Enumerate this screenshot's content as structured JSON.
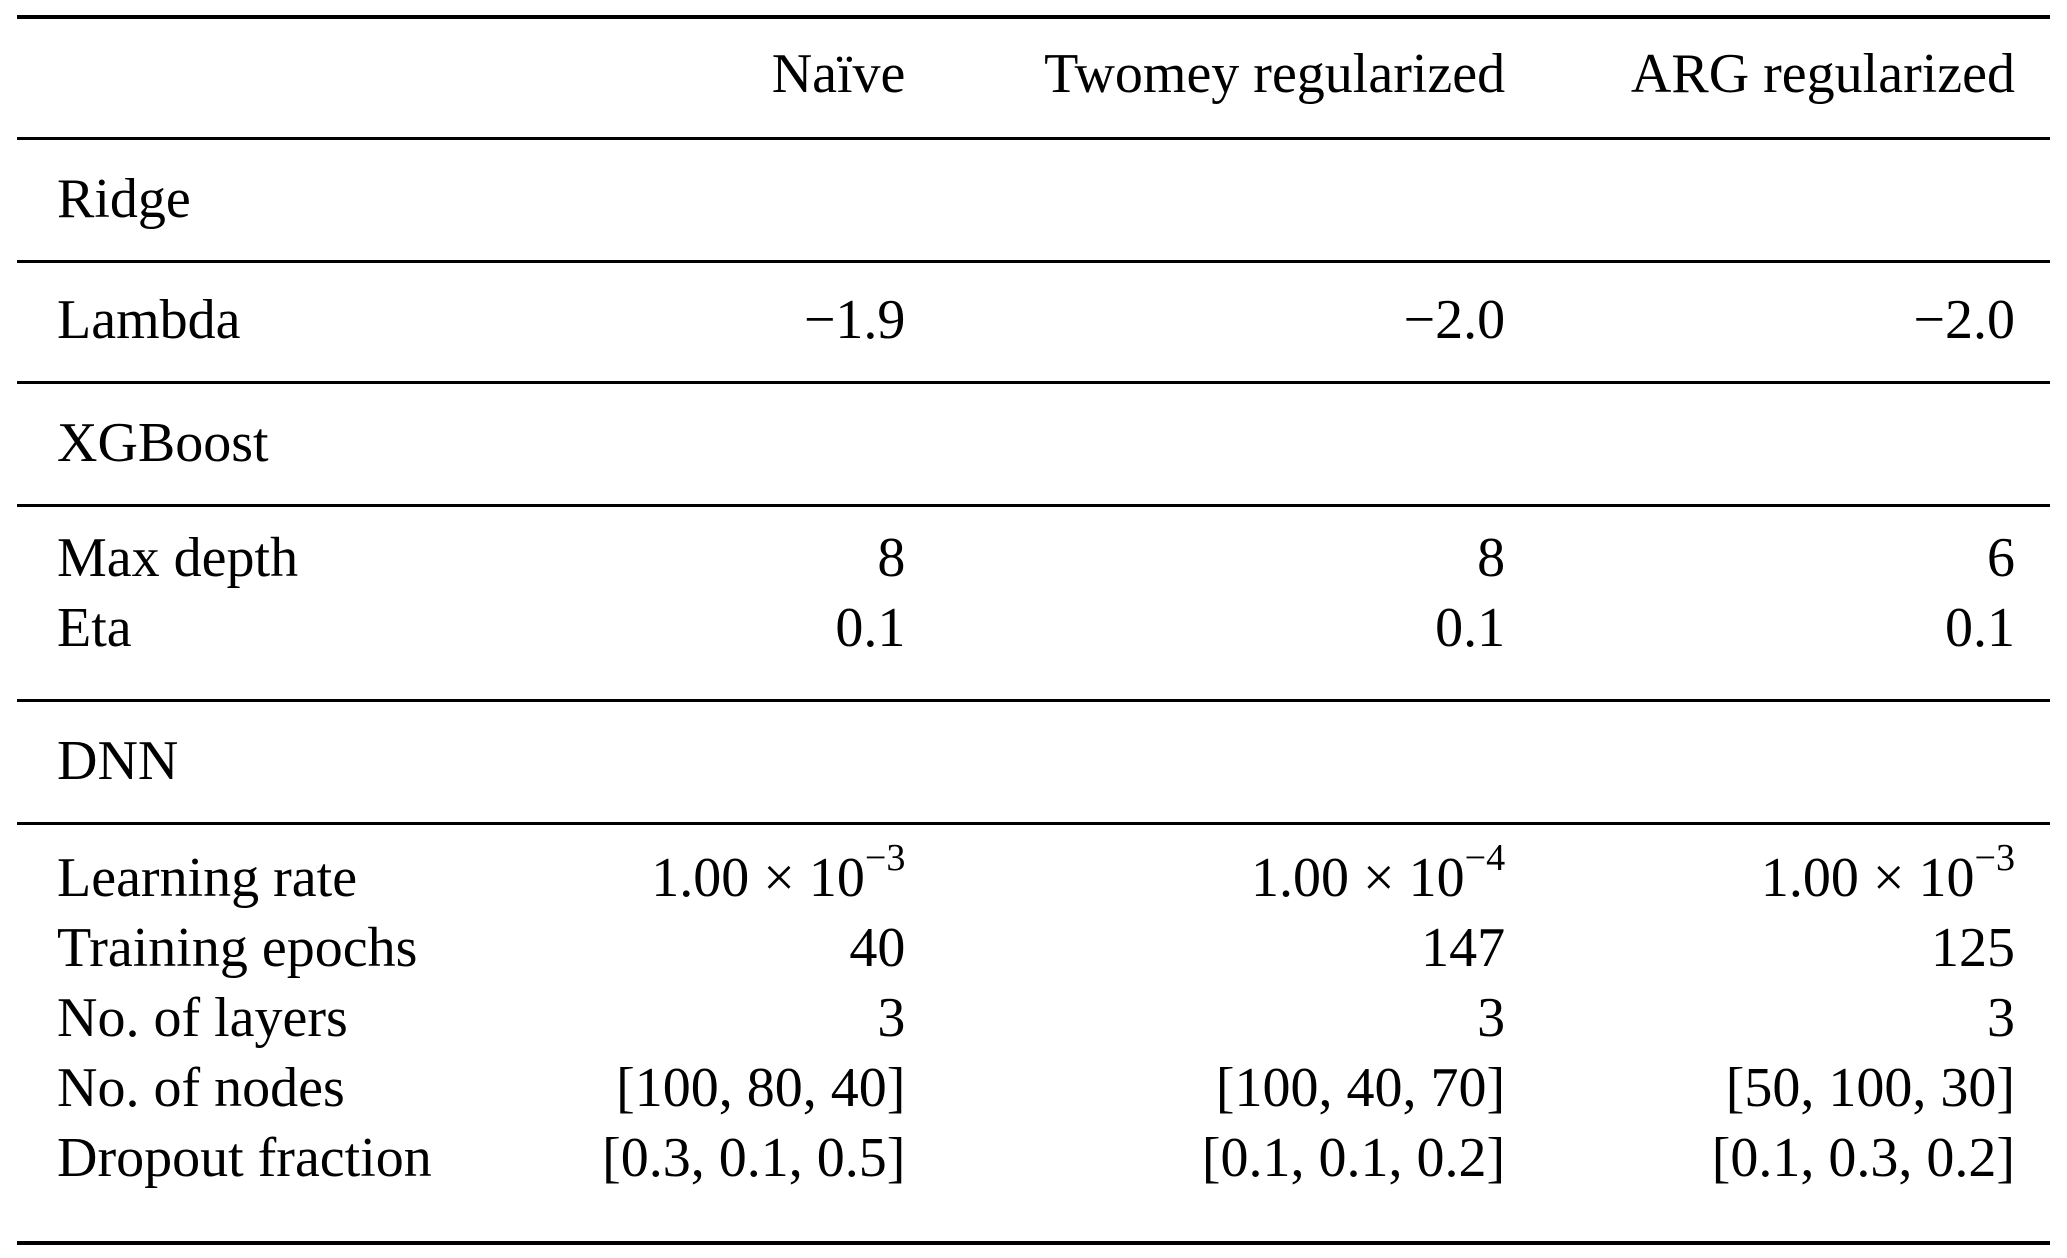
{
  "page": {
    "background_color": "#ffffff",
    "text_color": "#000000",
    "rule_color": "#000000"
  },
  "table": {
    "header": {
      "col2": "Naïve",
      "col3": "Twomey regularized",
      "col4": "ARG regularized"
    },
    "sections": [
      {
        "title": "Ridge",
        "rows": [
          {
            "label": "Lambda",
            "naive": "−1.9",
            "twomey": "−2.0",
            "arg": "−2.0"
          }
        ]
      },
      {
        "title": "XGBoost",
        "rows": [
          {
            "label": "Max depth",
            "naive": "8",
            "twomey": "8",
            "arg": "6"
          },
          {
            "label": "Eta",
            "naive": "0.1",
            "twomey": "0.1",
            "arg": "0.1"
          }
        ]
      },
      {
        "title": "DNN",
        "rows": [
          {
            "label": "Learning rate",
            "naive": {
              "base": "1.00 × 10",
              "exp": "−3"
            },
            "twomey": {
              "base": "1.00 × 10",
              "exp": "−4"
            },
            "arg": {
              "base": "1.00 × 10",
              "exp": "−3"
            }
          },
          {
            "label": "Training epochs",
            "naive": "40",
            "twomey": "147",
            "arg": "125"
          },
          {
            "label": "No. of layers",
            "naive": "3",
            "twomey": "3",
            "arg": "3"
          },
          {
            "label": "No. of nodes",
            "naive": "[100, 80, 40]",
            "twomey": "[100, 40, 70]",
            "arg": "[50, 100, 30]"
          },
          {
            "label": "Dropout fraction",
            "naive": "[0.3, 0.1, 0.5]",
            "twomey": "[0.1, 0.1, 0.2]",
            "arg": "[0.1, 0.3, 0.2]"
          }
        ]
      }
    ]
  }
}
